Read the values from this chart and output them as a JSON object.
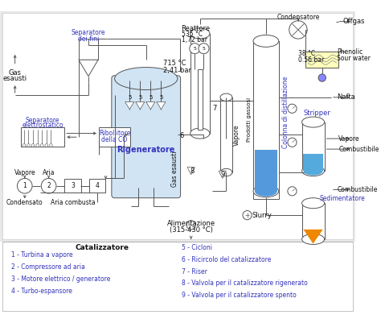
{
  "bg": "white",
  "lc": "#555555",
  "bc": "#3333bb",
  "legend_header": "Catalizzatore",
  "legend_left": [
    "1 - Turbina a vapore",
    "2 - Compressore ad aria",
    "3 - Motore elettrico / generatore",
    "4 - Turbo-espansore"
  ],
  "legend_right": [
    "5 - Cicloni",
    "6 - Ricircolo del catalizzatore",
    "7 - Riser",
    "8 - Valvola per il catalizzatore rigenerato",
    "9 - Valvola per il catalizzatore spento"
  ]
}
